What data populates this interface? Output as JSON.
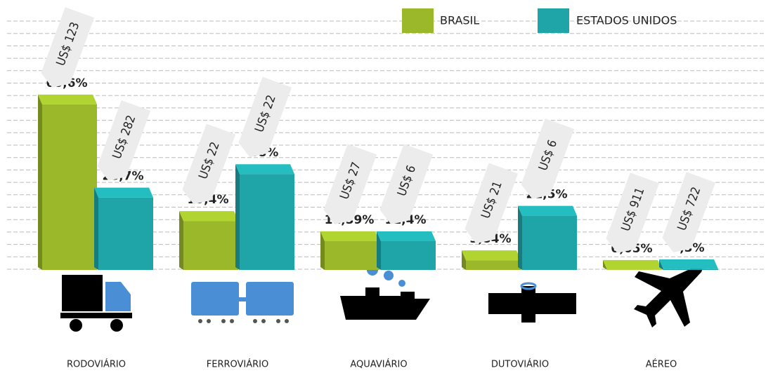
{
  "chart_data": {
    "type": "bar",
    "categories": [
      "RODOVIÁRIO",
      "FERROVIÁRIO",
      "AQUAVIÁRIO",
      "DUTOVIÁRIO",
      "AÉREO"
    ],
    "series": [
      {
        "name": "BRASIL",
        "color": "#9ab82a",
        "values": [
          65.6,
          19.4,
          11.39,
          3.84,
          0.05
        ],
        "value_labels": [
          "65,6%",
          "19,4%",
          "11,39%",
          "3,84%",
          "0,05%"
        ],
        "cost_labels": [
          "US$ 123",
          "US$ 22",
          "US$ 27",
          "US$ 21",
          "US$ 911"
        ]
      },
      {
        "name": "ESTADOS UNIDOS",
        "color": "#1fa5a8",
        "values": [
          28.7,
          38,
          11.4,
          21.5,
          0.3
        ],
        "value_labels": [
          "28,7%",
          "38%",
          "11,4%",
          "21,5%",
          "0,3%"
        ],
        "cost_labels": [
          "US$ 282",
          "US$ 22",
          "US$ 6",
          "US$ 6",
          "US$ 722"
        ]
      }
    ]
  }
}
